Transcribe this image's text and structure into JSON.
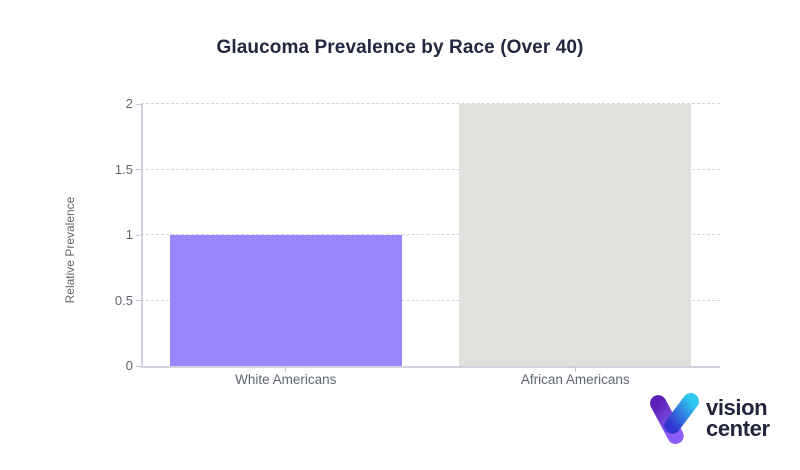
{
  "chart_data": {
    "type": "bar",
    "title": "Glaucoma Prevalence by Race (Over 40)",
    "categories": [
      "White Americans",
      "African Americans"
    ],
    "values": [
      1,
      2
    ],
    "bar_colors": [
      "#9b85fa",
      "#e2e0dd"
    ],
    "xlabel": "",
    "ylabel": "Relative Prevalence",
    "ylim": [
      0,
      2
    ],
    "yticks": [
      0,
      0.5,
      1,
      1.5,
      2
    ],
    "grid": "horizontal-dashed",
    "legend": "none"
  },
  "colors": {
    "title_text": "#232840",
    "axis_line": "#d2d2de",
    "gridline": "#d5d5e1",
    "tick_label": "#5f6570",
    "axis_title": "#63666d",
    "background": "#ffffff"
  },
  "branding": {
    "logo_line1": "vision",
    "logo_line2": "center",
    "logo_text_color": "#23253f",
    "icon_left_top": "#5b21b6",
    "icon_left_bottom": "#8b5cf6",
    "icon_right_top": "#2fc8f0",
    "icon_right_bottom": "#3336d1"
  }
}
